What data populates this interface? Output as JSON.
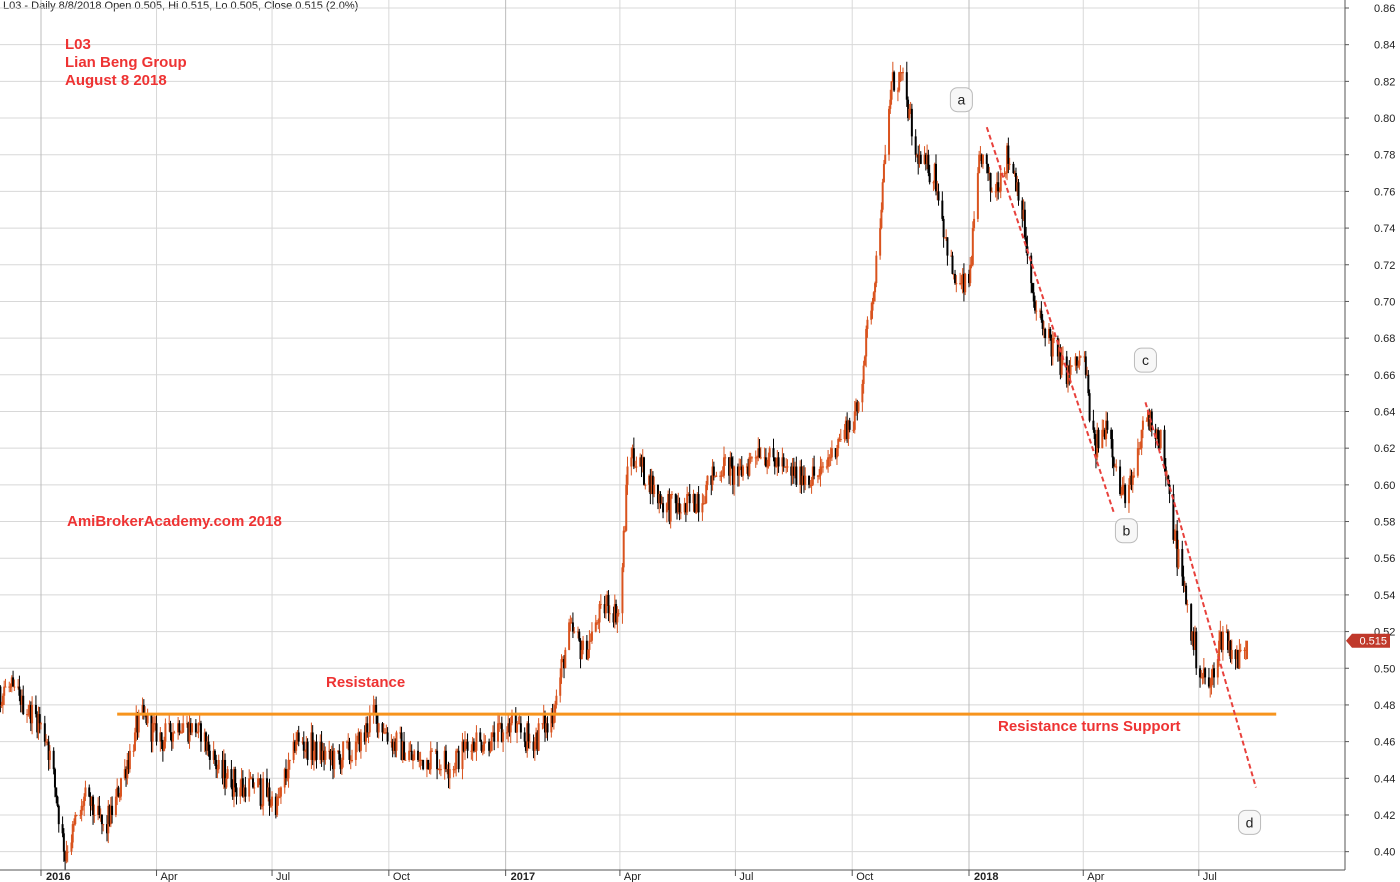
{
  "header": "L03 - Daily 8/8/2018 Open 0.505, Hi 0.515, Lo 0.505, Close 0.515 (2.0%)",
  "colors": {
    "up": "#d9531e",
    "down": "#000000",
    "resistance": "#f7941d",
    "trend": "#e8413c",
    "annotation": "#ee3333",
    "price_tag": "#c0392b",
    "grid": "#d8d8d8"
  },
  "annotations": {
    "symbol": "L03",
    "company": "Lian Beng Group",
    "date": "August 8 2018",
    "watermark": "AmiBrokerAcademy.com  2018",
    "resistance": "Resistance",
    "support": "Resistance turns Support"
  },
  "chart_data": {
    "type": "candlestick",
    "ylim": [
      0.39,
      0.86
    ],
    "y_ticks": [
      "0.40",
      "0.42",
      "0.44",
      "0.46",
      "0.48",
      "0.50",
      "0.52",
      "0.54",
      "0.56",
      "0.58",
      "0.60",
      "0.62",
      "0.64",
      "0.66",
      "0.68",
      "0.70",
      "0.72",
      "0.74",
      "0.76",
      "0.78",
      "0.80",
      "0.82",
      "0.84",
      "0.86"
    ],
    "x_ticks": [
      {
        "label": "2016",
        "year": true,
        "date": "2016-01-01"
      },
      {
        "label": "Apr",
        "year": false,
        "date": "2016-04-01"
      },
      {
        "label": "Jul",
        "year": false,
        "date": "2016-07-01"
      },
      {
        "label": "Oct",
        "year": false,
        "date": "2016-10-01"
      },
      {
        "label": "2017",
        "year": true,
        "date": "2017-01-01"
      },
      {
        "label": "Apr",
        "year": false,
        "date": "2017-04-01"
      },
      {
        "label": "Jul",
        "year": false,
        "date": "2017-07-01"
      },
      {
        "label": "Oct",
        "year": false,
        "date": "2017-10-01"
      },
      {
        "label": "2018",
        "year": true,
        "date": "2018-01-01"
      },
      {
        "label": "Apr",
        "year": false,
        "date": "2018-04-01"
      },
      {
        "label": "Jul",
        "year": false,
        "date": "2018-07-01"
      }
    ],
    "price_path": [
      [
        "2015-11-01",
        0.49
      ],
      [
        "2015-11-20",
        0.475
      ],
      [
        "2015-12-05",
        0.49
      ],
      [
        "2015-12-20",
        0.48
      ],
      [
        "2016-01-05",
        0.465
      ],
      [
        "2016-01-20",
        0.4
      ],
      [
        "2016-02-05",
        0.43
      ],
      [
        "2016-02-20",
        0.41
      ],
      [
        "2016-03-05",
        0.44
      ],
      [
        "2016-03-20",
        0.475
      ],
      [
        "2016-04-05",
        0.46
      ],
      [
        "2016-04-20",
        0.47
      ],
      [
        "2016-05-05",
        0.465
      ],
      [
        "2016-05-20",
        0.445
      ],
      [
        "2016-06-05",
        0.435
      ],
      [
        "2016-06-20",
        0.435
      ],
      [
        "2016-07-05",
        0.425
      ],
      [
        "2016-07-20",
        0.46
      ],
      [
        "2016-08-05",
        0.455
      ],
      [
        "2016-08-20",
        0.45
      ],
      [
        "2016-09-05",
        0.455
      ],
      [
        "2016-09-20",
        0.475
      ],
      [
        "2016-10-05",
        0.46
      ],
      [
        "2016-10-20",
        0.45
      ],
      [
        "2016-11-05",
        0.45
      ],
      [
        "2016-11-20",
        0.448
      ],
      [
        "2016-12-05",
        0.46
      ],
      [
        "2016-12-20",
        0.46
      ],
      [
        "2017-01-05",
        0.47
      ],
      [
        "2017-01-20",
        0.46
      ],
      [
        "2017-02-05",
        0.47
      ],
      [
        "2017-02-20",
        0.52
      ],
      [
        "2017-03-05",
        0.51
      ],
      [
        "2017-03-20",
        0.535
      ],
      [
        "2017-04-01",
        0.53
      ],
      [
        "2017-04-08",
        0.62
      ],
      [
        "2017-04-20",
        0.605
      ],
      [
        "2017-05-05",
        0.59
      ],
      [
        "2017-05-20",
        0.585
      ],
      [
        "2017-06-05",
        0.595
      ],
      [
        "2017-06-20",
        0.61
      ],
      [
        "2017-07-05",
        0.605
      ],
      [
        "2017-07-20",
        0.62
      ],
      [
        "2017-08-05",
        0.61
      ],
      [
        "2017-08-20",
        0.605
      ],
      [
        "2017-09-05",
        0.605
      ],
      [
        "2017-09-20",
        0.625
      ],
      [
        "2017-10-05",
        0.64
      ],
      [
        "2017-10-20",
        0.72
      ],
      [
        "2017-11-01",
        0.82
      ],
      [
        "2017-11-10",
        0.82
      ],
      [
        "2017-11-20",
        0.78
      ],
      [
        "2017-12-05",
        0.77
      ],
      [
        "2017-12-20",
        0.71
      ],
      [
        "2018-01-01",
        0.71
      ],
      [
        "2018-01-10",
        0.78
      ],
      [
        "2018-01-20",
        0.76
      ],
      [
        "2018-02-01",
        0.78
      ],
      [
        "2018-02-10",
        0.76
      ],
      [
        "2018-02-20",
        0.7
      ],
      [
        "2018-03-05",
        0.68
      ],
      [
        "2018-03-20",
        0.66
      ],
      [
        "2018-04-01",
        0.67
      ],
      [
        "2018-04-10",
        0.62
      ],
      [
        "2018-04-20",
        0.635
      ],
      [
        "2018-05-01",
        0.595
      ],
      [
        "2018-05-10",
        0.6
      ],
      [
        "2018-05-20",
        0.64
      ],
      [
        "2018-06-01",
        0.625
      ],
      [
        "2018-06-10",
        0.58
      ],
      [
        "2018-06-20",
        0.54
      ],
      [
        "2018-07-01",
        0.5
      ],
      [
        "2018-07-10",
        0.49
      ],
      [
        "2018-07-20",
        0.52
      ],
      [
        "2018-08-01",
        0.505
      ],
      [
        "2018-08-08",
        0.515
      ]
    ],
    "resistance_level": 0.475,
    "resistance_span": [
      "2016-03-01",
      "2018-08-31"
    ],
    "trendlines": [
      {
        "from": [
          "2018-01-15",
          0.795
        ],
        "to": [
          "2018-04-25",
          0.585
        ]
      },
      {
        "from": [
          "2018-05-20",
          0.645
        ],
        "to": [
          "2018-08-15",
          0.435
        ]
      }
    ],
    "last_price": 0.515,
    "last_price_label": "0.515",
    "wave_labels": [
      {
        "label": "a",
        "date": "2017-12-26",
        "price": 0.81
      },
      {
        "label": "b",
        "date": "2018-05-05",
        "price": 0.575
      },
      {
        "label": "c",
        "date": "2018-05-20",
        "price": 0.668
      },
      {
        "label": "d",
        "date": "2018-08-10",
        "price": 0.416
      }
    ]
  }
}
